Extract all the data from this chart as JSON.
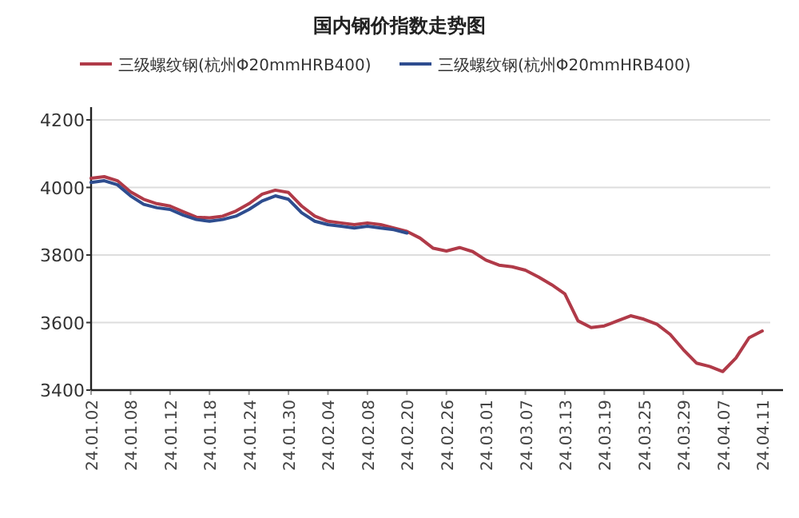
{
  "chart_data": {
    "type": "line",
    "title": "国内钢价指数走势图",
    "categories": [
      "24.01.02",
      null,
      null,
      "24.01.08",
      null,
      null,
      "24.01.12",
      null,
      null,
      "24.01.18",
      null,
      null,
      "24.01.24",
      null,
      null,
      "24.01.30",
      null,
      null,
      "24.02.04",
      null,
      null,
      "24.02.08",
      null,
      null,
      "24.02.20",
      null,
      null,
      "24.02.26",
      null,
      null,
      "24.03.01",
      null,
      null,
      "24.03.07",
      null,
      null,
      "24.03.13",
      null,
      null,
      "24.03.19",
      null,
      null,
      "24.03.25",
      null,
      null,
      "24.03.29",
      null,
      null,
      "24.04.07",
      null,
      null,
      "24.04.11"
    ],
    "series": [
      {
        "name": "三级螺纹钢(杭州Φ20mmHRB400)",
        "color": "#b03a48",
        "values": [
          4027,
          4032,
          4020,
          3987,
          3965,
          3952,
          3945,
          3928,
          3912,
          3910,
          3915,
          3930,
          3952,
          3980,
          3992,
          3985,
          3945,
          3915,
          3900,
          3895,
          3890,
          3895,
          3890,
          3880,
          3870,
          3850,
          3820,
          3812,
          3822,
          3810,
          3785,
          3770,
          3765,
          3755,
          3735,
          3712,
          3685,
          3605,
          3585,
          3590,
          3605,
          3620,
          3610,
          3595,
          3565,
          3520,
          3480,
          3470,
          3455,
          3495,
          3555,
          3575
        ]
      },
      {
        "name": "三级螺纹钢(杭州Φ20mmHRB400)",
        "color": "#2e4d8f",
        "values": [
          4015,
          4020,
          4008,
          3975,
          3950,
          3940,
          3935,
          3918,
          3905,
          3900,
          3905,
          3915,
          3935,
          3960,
          3975,
          3965,
          3925,
          3900,
          3890,
          3885,
          3880,
          3885,
          3880,
          3875,
          3865,
          null,
          null,
          null,
          null,
          null,
          null,
          null,
          null,
          null,
          null,
          null,
          null,
          null,
          null,
          null,
          null,
          null,
          null,
          null,
          null,
          null,
          null,
          null,
          null,
          null,
          null,
          null
        ]
      }
    ],
    "ylim": [
      3400,
      4200
    ],
    "yticks": [
      3400,
      3600,
      3800,
      4000,
      4200
    ],
    "grid": "y",
    "legend": "top",
    "marker": "none",
    "line_style": "solid"
  }
}
